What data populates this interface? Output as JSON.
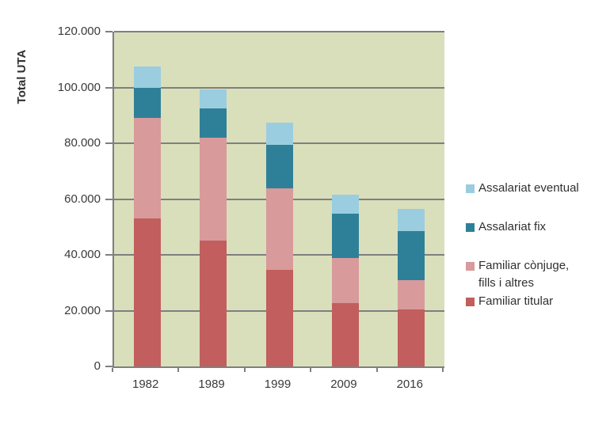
{
  "chart_data": {
    "type": "bar",
    "stacked": true,
    "title": "",
    "xlabel": "",
    "ylabel": "Total UTA",
    "categories": [
      "1982",
      "1989",
      "1999",
      "2009",
      "2016"
    ],
    "series": [
      {
        "name": "Familiar titular",
        "color": "#c25e5d",
        "values": [
          53000,
          45000,
          34500,
          22700,
          20500
        ]
      },
      {
        "name": "Familiar cònjuge, fills i altres",
        "color": "#d89a9b",
        "values": [
          36000,
          37000,
          29200,
          16200,
          10500
        ]
      },
      {
        "name": "Assalariat fix",
        "color": "#2e8099",
        "values": [
          11000,
          10400,
          15700,
          15900,
          17600
        ]
      },
      {
        "name": "Assalariat eventual",
        "color": "#9acde0",
        "values": [
          7500,
          6800,
          8000,
          6700,
          7900
        ]
      }
    ],
    "ylim": [
      0,
      120000
    ],
    "ytick_step": 20000,
    "ytick_labels": [
      "0",
      "20.000",
      "40.000",
      "60.000",
      "80.000",
      "100.000",
      "120.000"
    ],
    "grid": true,
    "legend_position": "right",
    "legend_order": [
      "Assalariat eventual",
      "Assalariat fix",
      "Familiar cònjuge, fills i altres",
      "Familiar titular"
    ],
    "colors": {
      "plot_background": "#d9dfbb",
      "gridline": "#7f7f7f",
      "axis": "#7f7f7f",
      "text": "#3a3a3a"
    }
  }
}
